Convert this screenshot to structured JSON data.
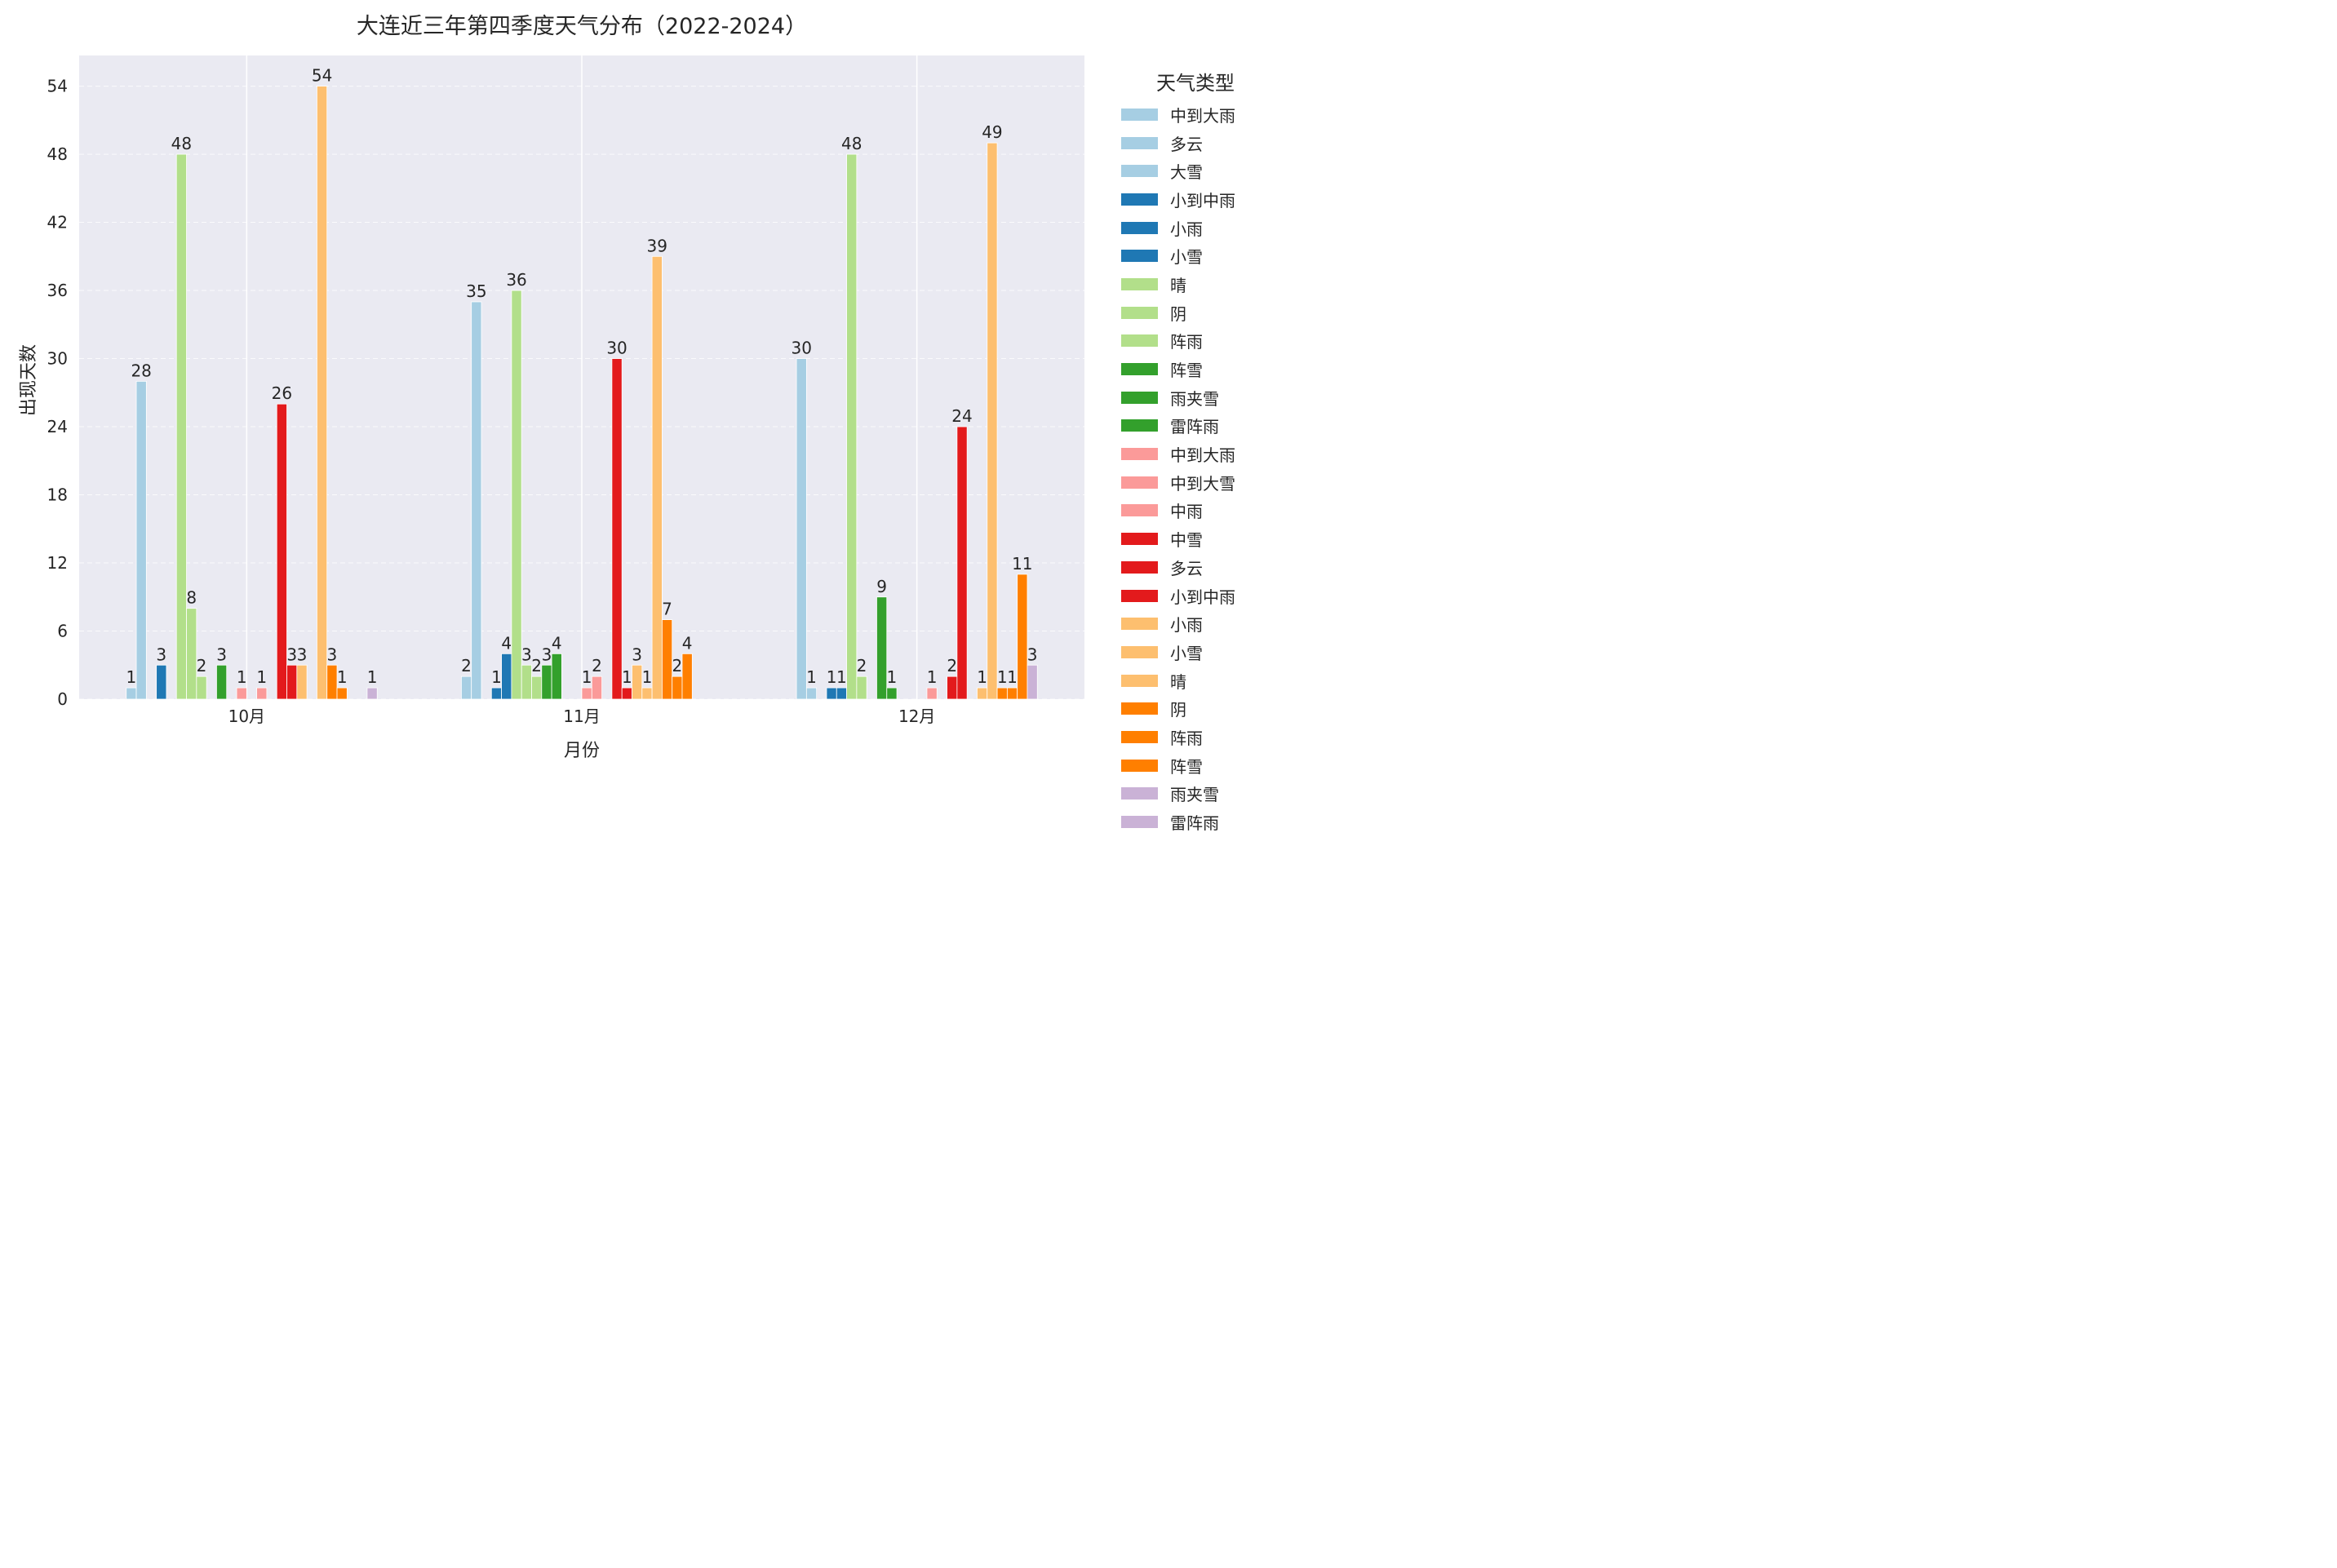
{
  "chart_data": {
    "type": "bar",
    "title": "大连近三年第四季度天气分布（2022-2024）",
    "xlabel": "月份",
    "ylabel": "出现天数",
    "categories": [
      "10月",
      "11月",
      "12月"
    ],
    "ylim": [
      0,
      56.7
    ],
    "yticks": [
      0,
      6,
      12,
      18,
      24,
      30,
      36,
      42,
      48,
      54
    ],
    "grid": true,
    "legend_title": "天气类型",
    "legend_position": "outside-right",
    "series": [
      {
        "name": "中到大雨",
        "color": "#a6cee3",
        "values": [
          0,
          0,
          0
        ]
      },
      {
        "name": "多云",
        "color": "#a6cee3",
        "values": [
          1,
          2,
          30
        ]
      },
      {
        "name": "大雪",
        "color": "#a6cee3",
        "values": [
          28,
          35,
          1
        ]
      },
      {
        "name": "小到中雨",
        "color": "#1f78b4",
        "values": [
          0,
          0,
          0
        ]
      },
      {
        "name": "小雨",
        "color": "#1f78b4",
        "values": [
          3,
          1,
          1
        ]
      },
      {
        "name": "小雪",
        "color": "#1f78b4",
        "values": [
          0,
          4,
          1
        ]
      },
      {
        "name": "晴",
        "color": "#b2df8a",
        "values": [
          48,
          36,
          48
        ]
      },
      {
        "name": "阴",
        "color": "#b2df8a",
        "values": [
          8,
          3,
          2
        ]
      },
      {
        "name": "阵雨",
        "color": "#b2df8a",
        "values": [
          2,
          2,
          0
        ]
      },
      {
        "name": "阵雪",
        "color": "#33a02c",
        "values": [
          0,
          3,
          9
        ]
      },
      {
        "name": "雨夹雪",
        "color": "#33a02c",
        "values": [
          3,
          4,
          1
        ]
      },
      {
        "name": "雷阵雨",
        "color": "#33a02c",
        "values": [
          0,
          0,
          0
        ]
      },
      {
        "name": "中到大雨",
        "color": "#fb9a99",
        "values": [
          1,
          0,
          0
        ]
      },
      {
        "name": "中到大雪",
        "color": "#fb9a99",
        "values": [
          0,
          1,
          0
        ]
      },
      {
        "name": "中雨",
        "color": "#fb9a99",
        "values": [
          1,
          2,
          1
        ]
      },
      {
        "name": "中雪",
        "color": "#e31a1c",
        "values": [
          0,
          0,
          0
        ]
      },
      {
        "name": "多云",
        "color": "#e31a1c",
        "values": [
          26,
          30,
          2
        ]
      },
      {
        "name": "小到中雨",
        "color": "#e31a1c",
        "values": [
          3,
          1,
          24
        ]
      },
      {
        "name": "小雨",
        "color": "#fdbf6f",
        "values": [
          3,
          3,
          0
        ]
      },
      {
        "name": "小雪",
        "color": "#fdbf6f",
        "values": [
          0,
          1,
          1
        ]
      },
      {
        "name": "晴",
        "color": "#fdbf6f",
        "values": [
          54,
          39,
          49
        ]
      },
      {
        "name": "阴",
        "color": "#ff7f00",
        "values": [
          3,
          7,
          1
        ]
      },
      {
        "name": "阵雨",
        "color": "#ff7f00",
        "values": [
          1,
          2,
          1
        ]
      },
      {
        "name": "阵雪",
        "color": "#ff7f00",
        "values": [
          0,
          4,
          11
        ]
      },
      {
        "name": "雨夹雪",
        "color": "#cab2d6",
        "values": [
          0,
          0,
          3
        ]
      },
      {
        "name": "雷阵雨",
        "color": "#cab2d6",
        "values": [
          1,
          0,
          0
        ]
      }
    ]
  }
}
